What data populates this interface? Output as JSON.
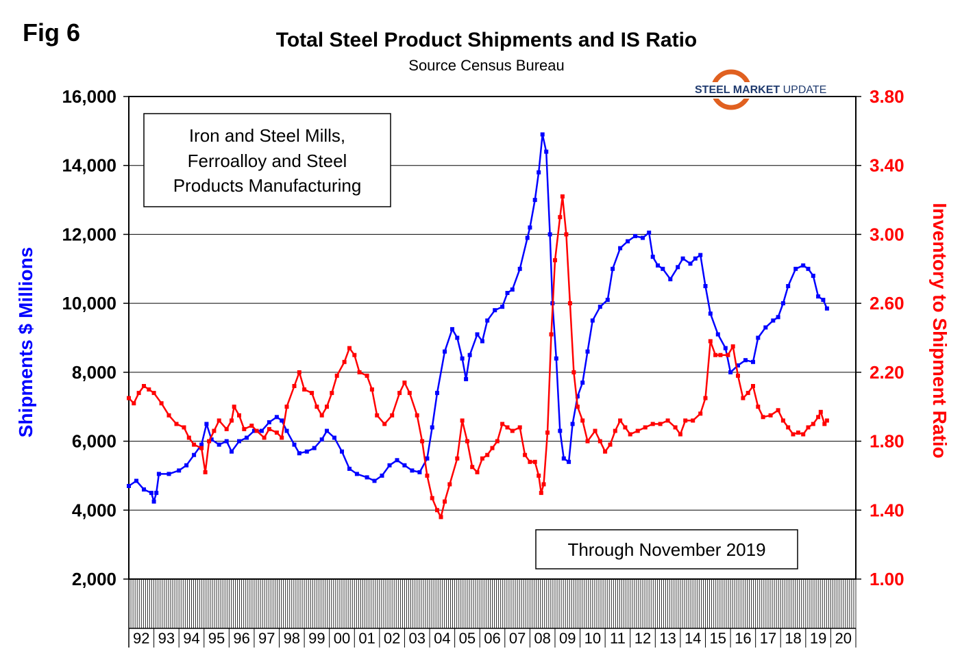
{
  "figure": {
    "fig_label": "Fig 6",
    "logo": {
      "bold": "STEEL MARKET",
      "light": " UPDATE"
    },
    "notes": {
      "description_lines": [
        "Iron and Steel Mills,",
        "Ferroalloy and Steel",
        "Products Manufacturing"
      ],
      "period": "Through November 2019"
    }
  },
  "chart_data": {
    "type": "line",
    "title": "Total Steel Product Shipments and IS Ratio",
    "subtitle": "Source Census Bureau",
    "ylabel": "Shipments $ Millions",
    "y2label": "Inventory to Shipment Ratio",
    "ylim": [
      2000,
      16000
    ],
    "y2lim": [
      1.0,
      3.8
    ],
    "yticks": [
      "2,000",
      "4,000",
      "6,000",
      "8,000",
      "10,000",
      "12,000",
      "14,000",
      "16,000"
    ],
    "y2ticks": [
      "1.00",
      "1.40",
      "1.80",
      "2.20",
      "2.60",
      "3.00",
      "3.40",
      "3.80"
    ],
    "xlim": [
      1992.0,
      2021.0
    ],
    "x_tick_labels": [
      "92",
      "93",
      "94",
      "95",
      "96",
      "97",
      "98",
      "99",
      "00",
      "01",
      "02",
      "03",
      "04",
      "05",
      "06",
      "07",
      "08",
      "09",
      "10",
      "11",
      "12",
      "13",
      "14",
      "15",
      "16",
      "17",
      "18",
      "19",
      "20"
    ],
    "grid": true,
    "series": [
      {
        "axis": "left",
        "color": "#0000ff",
        "marker": "square",
        "points": [
          [
            1992.0,
            4700
          ],
          [
            1992.3,
            4850
          ],
          [
            1992.6,
            4600
          ],
          [
            1992.9,
            4500
          ],
          [
            1993.0,
            4250
          ],
          [
            1993.1,
            4500
          ],
          [
            1993.2,
            5050
          ],
          [
            1993.6,
            5050
          ],
          [
            1994.0,
            5150
          ],
          [
            1994.3,
            5300
          ],
          [
            1994.6,
            5600
          ],
          [
            1994.9,
            5900
          ],
          [
            1995.1,
            6500
          ],
          [
            1995.3,
            6050
          ],
          [
            1995.6,
            5900
          ],
          [
            1995.9,
            6000
          ],
          [
            1996.1,
            5700
          ],
          [
            1996.4,
            6000
          ],
          [
            1996.7,
            6100
          ],
          [
            1997.0,
            6300
          ],
          [
            1997.3,
            6300
          ],
          [
            1997.6,
            6550
          ],
          [
            1997.9,
            6700
          ],
          [
            1998.1,
            6600
          ],
          [
            1998.3,
            6300
          ],
          [
            1998.6,
            5900
          ],
          [
            1998.8,
            5650
          ],
          [
            1999.1,
            5700
          ],
          [
            1999.4,
            5800
          ],
          [
            1999.7,
            6050
          ],
          [
            1999.9,
            6300
          ],
          [
            2000.2,
            6100
          ],
          [
            2000.5,
            5700
          ],
          [
            2000.8,
            5200
          ],
          [
            2001.1,
            5050
          ],
          [
            2001.5,
            4950
          ],
          [
            2001.8,
            4850
          ],
          [
            2002.1,
            5000
          ],
          [
            2002.4,
            5300
          ],
          [
            2002.7,
            5450
          ],
          [
            2003.0,
            5300
          ],
          [
            2003.3,
            5150
          ],
          [
            2003.6,
            5100
          ],
          [
            2003.9,
            5500
          ],
          [
            2004.1,
            6400
          ],
          [
            2004.3,
            7400
          ],
          [
            2004.6,
            8600
          ],
          [
            2004.9,
            9250
          ],
          [
            2005.1,
            9000
          ],
          [
            2005.3,
            8400
          ],
          [
            2005.45,
            7800
          ],
          [
            2005.6,
            8500
          ],
          [
            2005.9,
            9100
          ],
          [
            2006.1,
            8900
          ],
          [
            2006.3,
            9500
          ],
          [
            2006.6,
            9800
          ],
          [
            2006.9,
            9900
          ],
          [
            2007.1,
            10300
          ],
          [
            2007.3,
            10400
          ],
          [
            2007.6,
            11000
          ],
          [
            2007.9,
            11900
          ],
          [
            2008.0,
            12200
          ],
          [
            2008.2,
            13000
          ],
          [
            2008.35,
            13800
          ],
          [
            2008.5,
            14900
          ],
          [
            2008.65,
            14400
          ],
          [
            2008.8,
            12000
          ],
          [
            2008.9,
            10000
          ],
          [
            2009.05,
            8400
          ],
          [
            2009.2,
            6300
          ],
          [
            2009.35,
            5500
          ],
          [
            2009.55,
            5400
          ],
          [
            2009.7,
            6500
          ],
          [
            2009.9,
            7300
          ],
          [
            2010.1,
            7700
          ],
          [
            2010.3,
            8600
          ],
          [
            2010.5,
            9500
          ],
          [
            2010.8,
            9900
          ],
          [
            2011.1,
            10100
          ],
          [
            2011.3,
            11000
          ],
          [
            2011.6,
            11600
          ],
          [
            2011.9,
            11800
          ],
          [
            2012.2,
            11950
          ],
          [
            2012.5,
            11900
          ],
          [
            2012.75,
            12050
          ],
          [
            2012.9,
            11350
          ],
          [
            2013.1,
            11100
          ],
          [
            2013.3,
            11000
          ],
          [
            2013.6,
            10700
          ],
          [
            2013.9,
            11050
          ],
          [
            2014.1,
            11300
          ],
          [
            2014.4,
            11150
          ],
          [
            2014.6,
            11300
          ],
          [
            2014.8,
            11400
          ],
          [
            2015.0,
            10500
          ],
          [
            2015.2,
            9700
          ],
          [
            2015.5,
            9100
          ],
          [
            2015.8,
            8700
          ],
          [
            2016.0,
            8000
          ],
          [
            2016.3,
            8200
          ],
          [
            2016.6,
            8350
          ],
          [
            2016.9,
            8300
          ],
          [
            2017.1,
            9000
          ],
          [
            2017.4,
            9300
          ],
          [
            2017.7,
            9500
          ],
          [
            2017.9,
            9600
          ],
          [
            2018.1,
            10000
          ],
          [
            2018.3,
            10500
          ],
          [
            2018.6,
            11000
          ],
          [
            2018.9,
            11100
          ],
          [
            2019.1,
            11000
          ],
          [
            2019.3,
            10800
          ],
          [
            2019.5,
            10200
          ],
          [
            2019.7,
            10100
          ],
          [
            2019.85,
            9850
          ]
        ]
      },
      {
        "axis": "right",
        "color": "#ff0000",
        "marker": "square",
        "points": [
          [
            1992.0,
            2.05
          ],
          [
            1992.2,
            2.02
          ],
          [
            1992.4,
            2.08
          ],
          [
            1992.6,
            2.12
          ],
          [
            1992.8,
            2.1
          ],
          [
            1993.0,
            2.08
          ],
          [
            1993.3,
            2.02
          ],
          [
            1993.6,
            1.95
          ],
          [
            1993.9,
            1.9
          ],
          [
            1994.2,
            1.88
          ],
          [
            1994.4,
            1.82
          ],
          [
            1994.6,
            1.78
          ],
          [
            1994.9,
            1.76
          ],
          [
            1995.05,
            1.62
          ],
          [
            1995.2,
            1.8
          ],
          [
            1995.4,
            1.86
          ],
          [
            1995.6,
            1.92
          ],
          [
            1995.9,
            1.87
          ],
          [
            1996.1,
            1.92
          ],
          [
            1996.2,
            2.0
          ],
          [
            1996.4,
            1.95
          ],
          [
            1996.6,
            1.87
          ],
          [
            1996.9,
            1.89
          ],
          [
            1997.1,
            1.86
          ],
          [
            1997.4,
            1.82
          ],
          [
            1997.6,
            1.87
          ],
          [
            1997.9,
            1.85
          ],
          [
            1998.1,
            1.82
          ],
          [
            1998.3,
            2.0
          ],
          [
            1998.6,
            2.12
          ],
          [
            1998.8,
            2.2
          ],
          [
            1999.0,
            2.1
          ],
          [
            1999.3,
            2.08
          ],
          [
            1999.5,
            2.0
          ],
          [
            1999.7,
            1.95
          ],
          [
            1999.9,
            2.0
          ],
          [
            2000.1,
            2.08
          ],
          [
            2000.3,
            2.18
          ],
          [
            2000.6,
            2.26
          ],
          [
            2000.8,
            2.34
          ],
          [
            2001.0,
            2.3
          ],
          [
            2001.2,
            2.2
          ],
          [
            2001.5,
            2.18
          ],
          [
            2001.7,
            2.1
          ],
          [
            2001.9,
            1.95
          ],
          [
            2002.2,
            1.9
          ],
          [
            2002.5,
            1.95
          ],
          [
            2002.8,
            2.08
          ],
          [
            2003.0,
            2.14
          ],
          [
            2003.2,
            2.08
          ],
          [
            2003.5,
            1.95
          ],
          [
            2003.7,
            1.8
          ],
          [
            2003.9,
            1.6
          ],
          [
            2004.1,
            1.47
          ],
          [
            2004.3,
            1.4
          ],
          [
            2004.45,
            1.36
          ],
          [
            2004.6,
            1.45
          ],
          [
            2004.8,
            1.55
          ],
          [
            2005.1,
            1.7
          ],
          [
            2005.3,
            1.92
          ],
          [
            2005.5,
            1.8
          ],
          [
            2005.7,
            1.65
          ],
          [
            2005.9,
            1.62
          ],
          [
            2006.1,
            1.7
          ],
          [
            2006.3,
            1.72
          ],
          [
            2006.5,
            1.76
          ],
          [
            2006.7,
            1.8
          ],
          [
            2006.9,
            1.9
          ],
          [
            2007.1,
            1.88
          ],
          [
            2007.3,
            1.86
          ],
          [
            2007.6,
            1.88
          ],
          [
            2007.8,
            1.72
          ],
          [
            2008.0,
            1.68
          ],
          [
            2008.2,
            1.68
          ],
          [
            2008.35,
            1.6
          ],
          [
            2008.45,
            1.5
          ],
          [
            2008.55,
            1.55
          ],
          [
            2008.7,
            1.85
          ],
          [
            2008.85,
            2.42
          ],
          [
            2009.0,
            2.85
          ],
          [
            2009.2,
            3.1
          ],
          [
            2009.3,
            3.22
          ],
          [
            2009.45,
            3.0
          ],
          [
            2009.6,
            2.6
          ],
          [
            2009.75,
            2.2
          ],
          [
            2009.9,
            2.0
          ],
          [
            2010.1,
            1.92
          ],
          [
            2010.3,
            1.8
          ],
          [
            2010.6,
            1.86
          ],
          [
            2010.8,
            1.8
          ],
          [
            2011.0,
            1.74
          ],
          [
            2011.2,
            1.78
          ],
          [
            2011.4,
            1.86
          ],
          [
            2011.6,
            1.92
          ],
          [
            2011.8,
            1.88
          ],
          [
            2012.0,
            1.84
          ],
          [
            2012.3,
            1.86
          ],
          [
            2012.6,
            1.88
          ],
          [
            2012.9,
            1.9
          ],
          [
            2013.2,
            1.9
          ],
          [
            2013.5,
            1.92
          ],
          [
            2013.8,
            1.88
          ],
          [
            2014.0,
            1.84
          ],
          [
            2014.2,
            1.92
          ],
          [
            2014.5,
            1.92
          ],
          [
            2014.8,
            1.96
          ],
          [
            2015.0,
            2.05
          ],
          [
            2015.2,
            2.38
          ],
          [
            2015.4,
            2.3
          ],
          [
            2015.6,
            2.3
          ],
          [
            2015.9,
            2.3
          ],
          [
            2016.1,
            2.35
          ],
          [
            2016.3,
            2.18
          ],
          [
            2016.5,
            2.05
          ],
          [
            2016.7,
            2.08
          ],
          [
            2016.9,
            2.12
          ],
          [
            2017.1,
            2.0
          ],
          [
            2017.3,
            1.94
          ],
          [
            2017.6,
            1.95
          ],
          [
            2017.9,
            1.98
          ],
          [
            2018.1,
            1.92
          ],
          [
            2018.3,
            1.88
          ],
          [
            2018.5,
            1.84
          ],
          [
            2018.7,
            1.85
          ],
          [
            2018.9,
            1.84
          ],
          [
            2019.1,
            1.88
          ],
          [
            2019.3,
            1.9
          ],
          [
            2019.5,
            1.94
          ],
          [
            2019.6,
            1.97
          ],
          [
            2019.75,
            1.9
          ],
          [
            2019.85,
            1.92
          ]
        ]
      }
    ]
  }
}
